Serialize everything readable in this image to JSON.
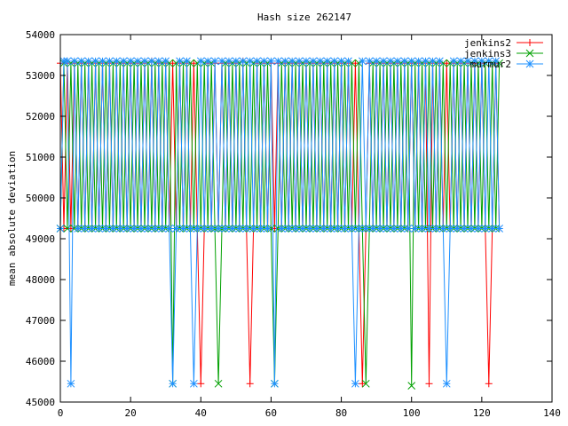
{
  "chart_data": {
    "type": "line",
    "title": "Hash size 262147",
    "xlabel": "",
    "ylabel": "mean absolute deviation",
    "xlim": [
      0,
      140
    ],
    "ylim": [
      45000,
      54000
    ],
    "xticks": [
      0,
      20,
      40,
      60,
      80,
      100,
      120,
      140
    ],
    "yticks": [
      45000,
      46000,
      47000,
      48000,
      49000,
      50000,
      51000,
      52000,
      53000,
      54000
    ],
    "grid": false,
    "legend_position": "top-right",
    "series": [
      {
        "name": "jenkins2",
        "color": "#ff0000",
        "marker": "plus",
        "x": [
          0,
          1,
          2,
          3,
          4,
          5,
          6,
          7,
          8,
          9,
          10,
          11,
          12,
          13,
          14,
          15,
          16,
          17,
          18,
          19,
          20,
          21,
          22,
          23,
          24,
          25,
          26,
          27,
          28,
          29,
          30,
          31,
          32,
          33,
          34,
          35,
          36,
          37,
          38,
          39,
          40,
          41,
          42,
          43,
          44,
          45,
          46,
          47,
          48,
          49,
          50,
          51,
          52,
          53,
          54,
          55,
          56,
          57,
          58,
          59,
          60,
          61,
          62,
          63,
          64,
          65,
          66,
          67,
          68,
          69,
          70,
          71,
          72,
          73,
          74,
          75,
          76,
          77,
          78,
          79,
          80,
          81,
          82,
          83,
          84,
          85,
          86,
          87,
          88,
          89,
          90,
          91,
          92,
          93,
          94,
          95,
          96,
          97,
          98,
          99,
          100,
          101,
          102,
          103,
          104,
          105,
          106,
          107,
          108,
          109,
          110,
          111,
          112,
          113,
          114,
          115,
          116,
          117,
          118,
          119,
          120,
          121,
          122,
          123,
          124,
          125
        ],
        "y": [
          53300,
          49250,
          53300,
          49250,
          53300,
          49250,
          53300,
          49250,
          53300,
          49250,
          53300,
          49250,
          53300,
          49250,
          53300,
          49250,
          53300,
          49250,
          53300,
          49250,
          53300,
          49250,
          53300,
          49250,
          53300,
          49250,
          53350,
          49250,
          53300,
          49250,
          53300,
          49250,
          53300,
          49250,
          53300,
          49250,
          53300,
          49250,
          53300,
          49250,
          45450,
          49250,
          53300,
          49250,
          53300,
          49250,
          53300,
          49250,
          53300,
          49250,
          53300,
          49250,
          53350,
          49250,
          45450,
          49250,
          53300,
          49250,
          53300,
          49250,
          53300,
          49250,
          53300,
          49250,
          53300,
          49250,
          53300,
          49250,
          53300,
          49250,
          53300,
          49250,
          53300,
          49250,
          53300,
          49250,
          53300,
          49250,
          53300,
          49250,
          53300,
          49250,
          53300,
          49250,
          53300,
          49250,
          45450,
          49250,
          53300,
          49250,
          53300,
          49250,
          53300,
          49250,
          53300,
          49250,
          53300,
          49250,
          53300,
          49250,
          53300,
          49250,
          53300,
          49250,
          53300,
          45450,
          53300,
          49250,
          53300,
          49250,
          53300,
          49250,
          53300,
          49250,
          53300,
          49250,
          53300,
          49250,
          53300,
          49250,
          53300,
          49250,
          45450,
          49250,
          53300,
          49250
        ]
      },
      {
        "name": "jenkins3",
        "color": "#00a000",
        "marker": "cross",
        "x": [
          0,
          1,
          2,
          3,
          4,
          5,
          6,
          7,
          8,
          9,
          10,
          11,
          12,
          13,
          14,
          15,
          16,
          17,
          18,
          19,
          20,
          21,
          22,
          23,
          24,
          25,
          26,
          27,
          28,
          29,
          30,
          31,
          32,
          33,
          34,
          35,
          36,
          37,
          38,
          39,
          40,
          41,
          42,
          43,
          44,
          45,
          46,
          47,
          48,
          49,
          50,
          51,
          52,
          53,
          54,
          55,
          56,
          57,
          58,
          59,
          60,
          61,
          62,
          63,
          64,
          65,
          66,
          67,
          68,
          69,
          70,
          71,
          72,
          73,
          74,
          75,
          76,
          77,
          78,
          79,
          80,
          81,
          82,
          83,
          84,
          85,
          86,
          87,
          88,
          89,
          90,
          91,
          92,
          93,
          94,
          95,
          96,
          97,
          98,
          99,
          100,
          101,
          102,
          103,
          104,
          105,
          106,
          107,
          108,
          109,
          110,
          111,
          112,
          113,
          114,
          115,
          116,
          117,
          118,
          119,
          120,
          121,
          122,
          123,
          124,
          125
        ],
        "y": [
          49250,
          53300,
          49250,
          53300,
          49250,
          53300,
          49250,
          53300,
          49250,
          53300,
          49250,
          53300,
          49250,
          53300,
          49250,
          53300,
          49250,
          53300,
          49250,
          53300,
          49250,
          53300,
          49250,
          53300,
          49250,
          53300,
          49250,
          53300,
          49250,
          53300,
          49250,
          53300,
          45450,
          53300,
          49250,
          53300,
          49250,
          53300,
          49250,
          53300,
          49250,
          53300,
          49250,
          53300,
          49250,
          45450,
          49250,
          53300,
          49250,
          53300,
          49250,
          53300,
          49250,
          53300,
          49250,
          53300,
          49250,
          53300,
          49250,
          53300,
          49250,
          45450,
          49250,
          53300,
          49250,
          53300,
          49250,
          53300,
          49250,
          53300,
          49250,
          53300,
          49250,
          53300,
          49250,
          53300,
          49250,
          53300,
          49250,
          53300,
          49250,
          53300,
          49250,
          53300,
          49250,
          53300,
          49250,
          45450,
          49250,
          53300,
          49250,
          53300,
          49250,
          53300,
          49250,
          53300,
          49250,
          53300,
          49250,
          53300,
          45400,
          53300,
          49250,
          53300,
          49250,
          53300,
          49250,
          53300,
          49250,
          53300,
          49250,
          53300,
          49250,
          53300,
          49250,
          53300,
          49250,
          53300,
          49250,
          53300,
          49250,
          53300,
          49250,
          53300,
          49250,
          53300
        ]
      },
      {
        "name": "murmur2",
        "color": "#1e90ff",
        "marker": "star",
        "x": [
          0,
          1,
          2,
          3,
          4,
          5,
          6,
          7,
          8,
          9,
          10,
          11,
          12,
          13,
          14,
          15,
          16,
          17,
          18,
          19,
          20,
          21,
          22,
          23,
          24,
          25,
          26,
          27,
          28,
          29,
          30,
          31,
          32,
          33,
          34,
          35,
          36,
          37,
          38,
          39,
          40,
          41,
          42,
          43,
          44,
          45,
          46,
          47,
          48,
          49,
          50,
          51,
          52,
          53,
          54,
          55,
          56,
          57,
          58,
          59,
          60,
          61,
          62,
          63,
          64,
          65,
          66,
          67,
          68,
          69,
          70,
          71,
          72,
          73,
          74,
          75,
          76,
          77,
          78,
          79,
          80,
          81,
          82,
          83,
          84,
          85,
          86,
          87,
          88,
          89,
          90,
          91,
          92,
          93,
          94,
          95,
          96,
          97,
          98,
          99,
          100,
          101,
          102,
          103,
          104,
          105,
          106,
          107,
          108,
          109,
          110,
          111,
          112,
          113,
          114,
          115,
          116,
          117,
          118,
          119,
          120,
          121,
          122,
          123,
          124,
          125
        ],
        "y": [
          49250,
          53350,
          53350,
          45450,
          53350,
          49250,
          53350,
          49250,
          53350,
          49250,
          53350,
          49250,
          53350,
          49250,
          53350,
          49250,
          53350,
          49250,
          53350,
          49250,
          53350,
          49250,
          53350,
          49250,
          53350,
          49250,
          53350,
          49250,
          53350,
          49250,
          53350,
          49250,
          45450,
          49250,
          53350,
          49250,
          53350,
          49250,
          45450,
          49250,
          53350,
          49250,
          53350,
          49250,
          53350,
          49250,
          53350,
          49250,
          53350,
          49250,
          53350,
          49250,
          53350,
          49250,
          53350,
          49250,
          53350,
          49250,
          53350,
          49250,
          53350,
          45450,
          53350,
          49250,
          53350,
          49250,
          53350,
          49250,
          53350,
          49250,
          53350,
          49250,
          53350,
          49250,
          53350,
          49250,
          53350,
          49250,
          53350,
          49250,
          53350,
          49250,
          53350,
          49250,
          45450,
          49250,
          53350,
          49250,
          53350,
          49250,
          53350,
          49250,
          53350,
          49250,
          53350,
          49250,
          53350,
          49250,
          53350,
          49250,
          53350,
          49250,
          53350,
          49250,
          53350,
          49250,
          53350,
          49250,
          53350,
          49250,
          45450,
          49250,
          53350,
          49250,
          53350,
          49250,
          53350,
          49250,
          53350,
          49250,
          53350,
          49250,
          53350,
          49250,
          53350,
          49250
        ]
      }
    ]
  }
}
